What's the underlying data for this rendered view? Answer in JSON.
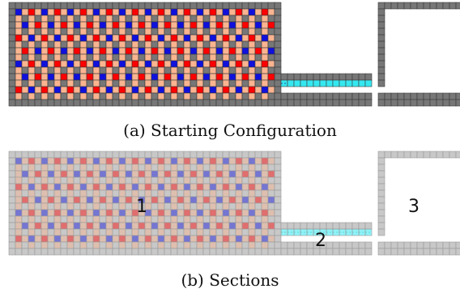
{
  "panels": [
    {
      "caption": "(a) Starting Configuration",
      "style": "full",
      "labels": []
    },
    {
      "caption": "(b) Sections",
      "style": "faded",
      "labels": [
        "1",
        "2",
        "3"
      ]
    }
  ],
  "colors": {
    "wall": "#777777",
    "wall_faded": "#c8c8c8",
    "grid_line": "#3a3a3a",
    "grid_line_faded": "#9a9a9a",
    "red": "#ff0000",
    "blue": "#1010dd",
    "salmon": "#f9b490",
    "cyan": "#35e8f0",
    "white": "#ffffff"
  }
}
